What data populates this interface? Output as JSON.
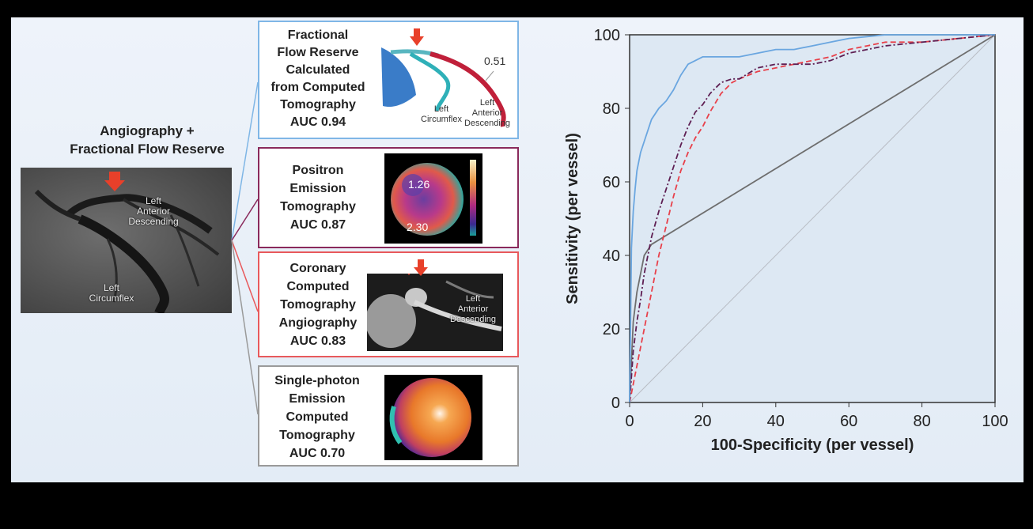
{
  "left": {
    "title_line1": "Angiography +",
    "title_line2": "Fractional Flow Reserve",
    "img_labels": {
      "lad_1": "Left",
      "lad_2": "Anterior",
      "lad_3": "Descending",
      "lcx_1": "Left",
      "lcx_2": "Circumflex"
    }
  },
  "modalities": [
    {
      "lines": [
        "Fractional",
        "Flow Reserve",
        "Calculated",
        "from Computed",
        "Tomography",
        "AUC 0.94"
      ],
      "border": "#7fb6e6",
      "img_labels": {
        "value": "0.51",
        "lcx_1": "Left",
        "lcx_2": "Circumflex",
        "lad_1": "Left",
        "lad_2": "Anterior",
        "lad_3": "Descending"
      }
    },
    {
      "lines": [
        "Positron",
        "Emission",
        "Tomography",
        "AUC 0.87"
      ],
      "border": "#8a2a5c",
      "img_labels": {
        "v1": "1.26",
        "v2": "2.30"
      }
    },
    {
      "lines": [
        "Coronary",
        "Computed",
        "Tomography",
        "Angiography",
        "AUC 0.83"
      ],
      "border": "#e8595c",
      "img_labels": {
        "lad_1": "Left",
        "lad_2": "Anterior",
        "lad_3": "Descending"
      }
    },
    {
      "lines": [
        "Single-photon",
        "Emission",
        "Computed",
        "Tomography",
        "AUC 0.70"
      ],
      "border": "#9a9a9a",
      "img_labels": {}
    }
  ],
  "colors": {
    "ffrct": "#6aa6e0",
    "pet": "#5e1e52",
    "ccta": "#e8404a",
    "spect": "#6e6e6e",
    "diagonal": "#b8bcc4",
    "plot_bg": "#dde8f3"
  },
  "chart_data": {
    "type": "line",
    "xlabel": "100-Specificity (per vessel)",
    "ylabel": "Sensitivity (per vessel)",
    "xlim": [
      0,
      100
    ],
    "ylim": [
      0,
      100
    ],
    "xticks": [
      0,
      20,
      40,
      60,
      80,
      100
    ],
    "yticks": [
      0,
      20,
      40,
      60,
      80,
      100
    ],
    "series": [
      {
        "key": "ffrct",
        "style": "solid",
        "x": [
          0,
          0.5,
          1,
          1.5,
          2,
          3,
          4,
          5,
          6,
          8,
          10,
          12,
          14,
          16,
          18,
          20,
          22,
          25,
          30,
          35,
          40,
          45,
          50,
          55,
          60,
          65,
          70,
          80,
          90,
          100
        ],
        "y": [
          0,
          42,
          52,
          58,
          63,
          68,
          71,
          74,
          77,
          80,
          82,
          85,
          89,
          92,
          93,
          94,
          94,
          94,
          94,
          95,
          96,
          96,
          97,
          98,
          99,
          99.5,
          100,
          100,
          100,
          100
        ]
      },
      {
        "key": "pet",
        "style": "dashdot",
        "x": [
          0,
          1,
          2,
          3,
          4,
          5,
          6,
          8,
          10,
          12,
          14,
          16,
          18,
          20,
          22,
          25,
          28,
          30,
          35,
          40,
          45,
          50,
          55,
          60,
          65,
          70,
          80,
          90,
          100
        ],
        "y": [
          0,
          14,
          22,
          28,
          35,
          40,
          45,
          52,
          58,
          64,
          70,
          75,
          79,
          81,
          84,
          87,
          88,
          88,
          91,
          92,
          92,
          92,
          93,
          95,
          96,
          97,
          98,
          99,
          100
        ]
      },
      {
        "key": "ccta",
        "style": "dashed",
        "x": [
          0,
          2,
          4,
          6,
          8,
          10,
          12,
          14,
          16,
          18,
          20,
          22,
          25,
          28,
          30,
          35,
          40,
          45,
          50,
          55,
          60,
          65,
          70,
          80,
          90,
          100
        ],
        "y": [
          0,
          10,
          20,
          30,
          40,
          48,
          56,
          63,
          68,
          72,
          75,
          79,
          84,
          87,
          88,
          90,
          91,
          92,
          93,
          94,
          96,
          97,
          98,
          98,
          99,
          100
        ]
      },
      {
        "key": "spect",
        "style": "solid",
        "x": [
          0,
          1,
          2,
          4,
          6,
          100
        ],
        "y": [
          0,
          22,
          30,
          40,
          43,
          100
        ]
      },
      {
        "key": "diagonal",
        "style": "solid",
        "x": [
          0,
          100
        ],
        "y": [
          0,
          100
        ]
      }
    ]
  }
}
